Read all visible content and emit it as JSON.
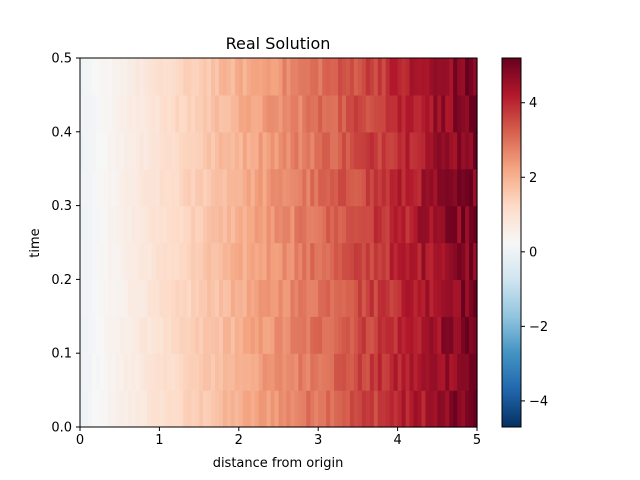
{
  "chart_data": {
    "type": "heatmap",
    "title": "Real Solution",
    "xlabel": "distance from origin",
    "ylabel": "time",
    "xlim": [
      0,
      5
    ],
    "ylim": [
      0,
      0.5
    ],
    "x_ticks": [
      "0",
      "1",
      "2",
      "3",
      "4",
      "5"
    ],
    "y_ticks": [
      "0.0",
      "0.1",
      "0.2",
      "0.3",
      "0.4",
      "0.5"
    ],
    "colormap": "RdBu_r",
    "color_range": [
      -4.7,
      5.2
    ],
    "colorbar_ticks": [
      "−4",
      "−2",
      "0",
      "2",
      "4"
    ],
    "colorbar_tick_values": [
      -4,
      -2,
      0,
      2,
      4
    ],
    "grid": false,
    "n_time_rows": 10,
    "n_distance_cols": 100,
    "value_model": "value ≈ x (distance from origin) with random noise; maximum ≈ 5.2 near x = 5"
  }
}
